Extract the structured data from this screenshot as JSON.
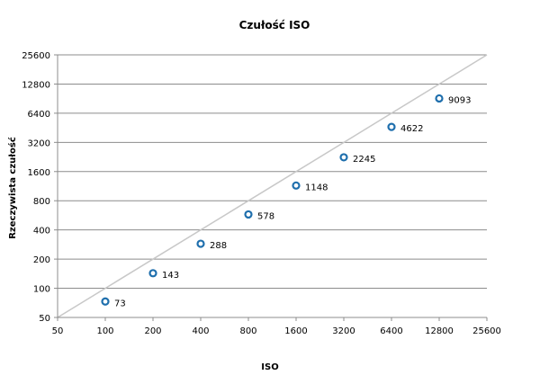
{
  "chart_data": {
    "type": "scatter",
    "title": "Czułość ISO",
    "xlabel": "ISO",
    "ylabel": "Rzeczywista czułość",
    "x_scale": "log2",
    "y_scale": "log2",
    "xlim": [
      50,
      25600
    ],
    "ylim": [
      50,
      25600
    ],
    "x_ticks": [
      "50",
      "100",
      "200",
      "400",
      "800",
      "1600",
      "3200",
      "6400",
      "12800",
      "25600"
    ],
    "y_ticks": [
      "50",
      "100",
      "200",
      "400",
      "800",
      "1600",
      "3200",
      "6400",
      "12800",
      "25600"
    ],
    "grid": "horizontal",
    "series": [
      {
        "x": [
          100,
          200,
          400,
          800,
          1600,
          3200,
          6400,
          12800
        ],
        "y": [
          73,
          143,
          288,
          578,
          1148,
          2245,
          4622,
          9093
        ],
        "labels": [
          "73",
          "143",
          "288",
          "578",
          "1148",
          "2245",
          "4622",
          "9093"
        ],
        "color": "#1f6fad",
        "marker": "hollow-circle"
      }
    ],
    "reference_line": {
      "type": "y=x",
      "color": "#c8c8c8"
    }
  }
}
